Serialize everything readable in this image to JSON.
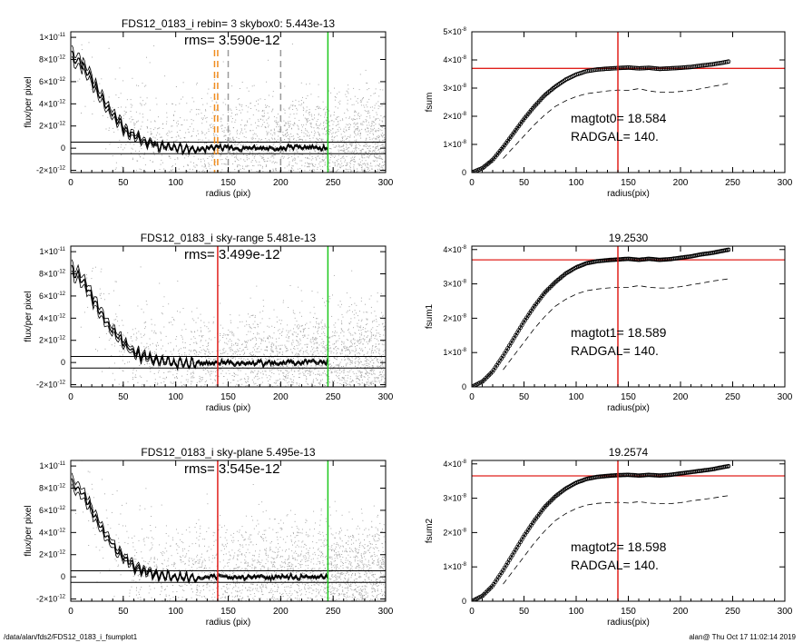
{
  "footer": {
    "path": "/data/alan/fds2/FDS12_0183_i_fsumplot1",
    "user_time": "alan@  Thu Oct 17 11:02:14 2019"
  },
  "colors": {
    "scatter": "#a9a9a9",
    "profile": "#000000",
    "radgal_line": "#e0201c",
    "sky_line": "#1ec81e",
    "skybox_line": "#f08c1e",
    "axes": "#000000"
  },
  "chart_data": [
    {
      "type": "scatter",
      "title": "FDS12_0183_i rebin= 3    skybox0:  5.443e-13",
      "annotation": "rms= 3.590e-12",
      "xlabel": "radius (pix)",
      "ylabel": "flux/per pixel",
      "xlim": [
        0,
        300
      ],
      "ylim": [
        -2.2e-12,
        1.05e-11
      ],
      "xticks": [
        0,
        50,
        100,
        150,
        200,
        250,
        300
      ],
      "xtick_labels": [
        "0",
        "50",
        "100",
        "150",
        "200",
        "250",
        "300"
      ],
      "yticks": [
        -2e-12,
        0,
        2e-12,
        4e-12,
        6e-12,
        8e-12,
        1e-11
      ],
      "ytick_labels": [
        [
          "-2×10",
          "-12"
        ],
        [
          "0",
          ""
        ],
        [
          "2×10",
          "-12"
        ],
        [
          "4×10",
          "-12"
        ],
        [
          "6×10",
          "-12"
        ],
        [
          "8×10",
          "-12"
        ],
        [
          "1×10",
          "-11"
        ]
      ],
      "hlines": [
        5.443e-13,
        -5e-13
      ],
      "vline_sky": 245,
      "vline_radgal": null,
      "dashed_vlines": [
        {
          "x": 140,
          "color": "orange"
        },
        {
          "x": 137,
          "color": "orange"
        },
        {
          "x": 150,
          "color": "gray"
        },
        {
          "x": 200,
          "color": "gray"
        }
      ],
      "profile": {
        "x": [
          1,
          5,
          10,
          15,
          20,
          25,
          30,
          35,
          40,
          45,
          50,
          55,
          60,
          65,
          70,
          75,
          80,
          90,
          100,
          120,
          140,
          160,
          180,
          200,
          220,
          245
        ],
        "y": [
          8.5e-12,
          8e-12,
          7.7e-12,
          7e-12,
          6.2e-12,
          5.2e-12,
          4.4e-12,
          3.6e-12,
          3e-12,
          2.4e-12,
          1.9e-12,
          1.5e-12,
          1.1e-12,
          8e-13,
          6e-13,
          4.5e-13,
          3e-13,
          1.5e-13,
          5e-14,
          -5e-14,
          1e-13,
          -5e-14,
          5e-14,
          0,
          5e-14,
          0
        ]
      },
      "scatter_seed": 11,
      "scatter_noise": 3.59e-12
    },
    {
      "type": "line",
      "title": "",
      "xlabel": "radius(pix)",
      "ylabel": "fsum",
      "xlim": [
        0,
        300
      ],
      "ylim": [
        0,
        5e-08
      ],
      "xticks": [
        0,
        50,
        100,
        150,
        200,
        250,
        300
      ],
      "xtick_labels": [
        "0",
        "50",
        "100",
        "150",
        "200",
        "250",
        "300"
      ],
      "yticks": [
        0,
        1e-08,
        2e-08,
        3e-08,
        4e-08,
        5e-08
      ],
      "ytick_labels": [
        [
          "0",
          ""
        ],
        [
          "1×10",
          "-8"
        ],
        [
          "2×10",
          "-8"
        ],
        [
          "3×10",
          "-8"
        ],
        [
          "4×10",
          "-8"
        ],
        [
          "5×10",
          "-8"
        ]
      ],
      "hline": 3.7e-08,
      "vline": 140,
      "annotations": [
        "magtot0=  18.584",
        "RADGAL=    140."
      ],
      "curve": {
        "x": [
          0,
          10,
          20,
          30,
          40,
          50,
          60,
          70,
          80,
          90,
          100,
          110,
          120,
          130,
          140,
          150,
          160,
          170,
          180,
          190,
          200,
          210,
          220,
          230,
          240,
          247
        ],
        "y": [
          0,
          1.5e-09,
          4.5e-09,
          9e-09,
          1.4e-08,
          1.9e-08,
          2.35e-08,
          2.75e-08,
          3.05e-08,
          3.3e-08,
          3.48e-08,
          3.6e-08,
          3.66e-08,
          3.69e-08,
          3.71e-08,
          3.73e-08,
          3.7e-08,
          3.72e-08,
          3.68e-08,
          3.7e-08,
          3.72e-08,
          3.75e-08,
          3.8e-08,
          3.84e-08,
          3.9e-08,
          3.95e-08
        ]
      },
      "dashed": {
        "x": [
          30,
          40,
          50,
          60,
          70,
          80,
          90,
          100,
          110,
          120,
          130,
          140,
          150,
          160,
          170,
          180,
          190,
          200,
          210,
          220,
          230,
          240,
          247
        ],
        "y": [
          5e-09,
          9e-09,
          1.3e-08,
          1.7e-08,
          2.05e-08,
          2.35e-08,
          2.55e-08,
          2.7e-08,
          2.8e-08,
          2.85e-08,
          2.9e-08,
          2.93e-08,
          2.92e-08,
          2.98e-08,
          2.9e-08,
          2.85e-08,
          2.85e-08,
          2.88e-08,
          2.92e-08,
          2.98e-08,
          3.05e-08,
          3.12e-08,
          3.18e-08
        ]
      },
      "error_band": 6e-10
    },
    {
      "type": "scatter",
      "title": "FDS12_0183_i sky-range  5.481e-13",
      "annotation": "rms= 3.499e-12",
      "xlabel": "radius (pix)",
      "ylabel": "flux/per pixel",
      "xlim": [
        0,
        300
      ],
      "ylim": [
        -2.2e-12,
        1.05e-11
      ],
      "xticks": [
        0,
        50,
        100,
        150,
        200,
        250,
        300
      ],
      "xtick_labels": [
        "0",
        "50",
        "100",
        "150",
        "200",
        "250",
        "300"
      ],
      "yticks": [
        -2e-12,
        0,
        2e-12,
        4e-12,
        6e-12,
        8e-12,
        1e-11
      ],
      "ytick_labels": [
        [
          "-2×10",
          "-12"
        ],
        [
          "0",
          ""
        ],
        [
          "2×10",
          "-12"
        ],
        [
          "4×10",
          "-12"
        ],
        [
          "6×10",
          "-12"
        ],
        [
          "8×10",
          "-12"
        ],
        [
          "1×10",
          "-11"
        ]
      ],
      "hlines": [
        5.481e-13,
        -5e-13
      ],
      "vline_sky": 245,
      "vline_radgal": 140,
      "dashed_vlines": [],
      "profile": {
        "x": [
          1,
          5,
          10,
          15,
          20,
          25,
          30,
          35,
          40,
          45,
          50,
          55,
          60,
          65,
          70,
          75,
          80,
          90,
          100,
          120,
          140,
          160,
          180,
          200,
          220,
          245
        ],
        "y": [
          8.4e-12,
          8e-12,
          7.6e-12,
          6.9e-12,
          6.1e-12,
          5.1e-12,
          4.3e-12,
          3.5e-12,
          2.9e-12,
          2.3e-12,
          1.8e-12,
          1.4e-12,
          1e-12,
          7.5e-13,
          5.5e-13,
          4e-13,
          2.5e-13,
          1e-13,
          0,
          -1e-13,
          5e-14,
          -1e-13,
          0,
          -5e-14,
          0,
          -5e-14
        ]
      },
      "scatter_seed": 23,
      "scatter_noise": 3.499e-12
    },
    {
      "type": "line",
      "title": "19.2530",
      "xlabel": "radius(pix)",
      "ylabel": "fsum1",
      "xlim": [
        0,
        300
      ],
      "ylim": [
        0,
        4.1e-08
      ],
      "xticks": [
        0,
        50,
        100,
        150,
        200,
        250,
        300
      ],
      "xtick_labels": [
        "0",
        "50",
        "100",
        "150",
        "200",
        "250",
        "300"
      ],
      "yticks": [
        0,
        1e-08,
        2e-08,
        3e-08,
        4e-08
      ],
      "ytick_labels": [
        [
          "0",
          ""
        ],
        [
          "1×10",
          "-8"
        ],
        [
          "2×10",
          "-8"
        ],
        [
          "3×10",
          "-8"
        ],
        [
          "4×10",
          "-8"
        ]
      ],
      "hline": 3.7e-08,
      "vline": 140,
      "annotations": [
        "magtot1=  18.589",
        "RADGAL=    140."
      ],
      "curve": {
        "x": [
          0,
          10,
          20,
          30,
          40,
          50,
          60,
          70,
          80,
          90,
          100,
          110,
          120,
          130,
          140,
          150,
          160,
          170,
          180,
          190,
          200,
          210,
          220,
          230,
          240,
          247
        ],
        "y": [
          0,
          1.5e-09,
          4.5e-09,
          9e-09,
          1.4e-08,
          1.9e-08,
          2.35e-08,
          2.75e-08,
          3.05e-08,
          3.3e-08,
          3.48e-08,
          3.6e-08,
          3.66e-08,
          3.69e-08,
          3.71e-08,
          3.73e-08,
          3.7e-08,
          3.73e-08,
          3.7e-08,
          3.72e-08,
          3.76e-08,
          3.8e-08,
          3.86e-08,
          3.9e-08,
          3.96e-08,
          4e-08
        ]
      },
      "dashed": {
        "x": [
          30,
          40,
          50,
          60,
          70,
          80,
          90,
          100,
          110,
          120,
          130,
          140,
          150,
          160,
          170,
          180,
          190,
          200,
          210,
          220,
          230,
          240,
          247
        ],
        "y": [
          5e-09,
          9e-09,
          1.3e-08,
          1.7e-08,
          2.05e-08,
          2.35e-08,
          2.55e-08,
          2.7e-08,
          2.8e-08,
          2.85e-08,
          2.88e-08,
          2.9e-08,
          2.9e-08,
          2.95e-08,
          2.9e-08,
          2.88e-08,
          2.88e-08,
          2.92e-08,
          2.97e-08,
          3.02e-08,
          3.08e-08,
          3.12e-08,
          3.15e-08
        ]
      },
      "error_band": 3e-10
    },
    {
      "type": "scatter",
      "title": "FDS12_0183_i sky-plane  5.495e-13",
      "annotation": "rms= 3.545e-12",
      "xlabel": "radius (pix)",
      "ylabel": "flux/per pixel",
      "xlim": [
        0,
        300
      ],
      "ylim": [
        -2.2e-12,
        1.05e-11
      ],
      "xticks": [
        0,
        50,
        100,
        150,
        200,
        250,
        300
      ],
      "xtick_labels": [
        "0",
        "50",
        "100",
        "150",
        "200",
        "250",
        "300"
      ],
      "yticks": [
        -2e-12,
        0,
        2e-12,
        4e-12,
        6e-12,
        8e-12,
        1e-11
      ],
      "ytick_labels": [
        [
          "-2×10",
          "-12"
        ],
        [
          "0",
          ""
        ],
        [
          "2×10",
          "-12"
        ],
        [
          "4×10",
          "-12"
        ],
        [
          "6×10",
          "-12"
        ],
        [
          "8×10",
          "-12"
        ],
        [
          "1×10",
          "-11"
        ]
      ],
      "hlines": [
        5.495e-13,
        -5e-13
      ],
      "vline_sky": 245,
      "vline_radgal": 140,
      "dashed_vlines": [],
      "profile": {
        "x": [
          1,
          5,
          10,
          15,
          20,
          25,
          30,
          35,
          40,
          45,
          50,
          55,
          60,
          65,
          70,
          75,
          80,
          90,
          100,
          120,
          140,
          160,
          180,
          200,
          220,
          245
        ],
        "y": [
          8.4e-12,
          8e-12,
          7.6e-12,
          6.9e-12,
          6.1e-12,
          5.1e-12,
          4.3e-12,
          3.5e-12,
          2.9e-12,
          2.3e-12,
          1.8e-12,
          1.4e-12,
          1e-12,
          7.5e-13,
          5.5e-13,
          4e-13,
          2.5e-13,
          1e-13,
          0,
          -1e-13,
          5e-14,
          -1e-13,
          0,
          -5e-14,
          0,
          -5e-14
        ]
      },
      "scatter_seed": 37,
      "scatter_noise": 3.545e-12
    },
    {
      "type": "line",
      "title": "19.2574",
      "xlabel": "radius(pix)",
      "ylabel": "fsum2",
      "xlim": [
        0,
        300
      ],
      "ylim": [
        0,
        4.1e-08
      ],
      "xticks": [
        0,
        50,
        100,
        150,
        200,
        250,
        300
      ],
      "xtick_labels": [
        "0",
        "50",
        "100",
        "150",
        "200",
        "250",
        "300"
      ],
      "yticks": [
        0,
        1e-08,
        2e-08,
        3e-08,
        4e-08
      ],
      "ytick_labels": [
        [
          "0",
          ""
        ],
        [
          "1×10",
          "-8"
        ],
        [
          "2×10",
          "-8"
        ],
        [
          "3×10",
          "-8"
        ],
        [
          "4×10",
          "-8"
        ]
      ],
      "hline": 3.65e-08,
      "vline": 140,
      "annotations": [
        "magtot2=  18.598",
        "RADGAL=    140."
      ],
      "curve": {
        "x": [
          0,
          10,
          20,
          30,
          40,
          50,
          60,
          70,
          80,
          90,
          100,
          110,
          120,
          130,
          140,
          150,
          160,
          170,
          180,
          190,
          200,
          210,
          220,
          230,
          240,
          247
        ],
        "y": [
          0,
          1.5e-09,
          4.5e-09,
          9e-09,
          1.4e-08,
          1.9e-08,
          2.35e-08,
          2.75e-08,
          3.05e-08,
          3.28e-08,
          3.45e-08,
          3.56e-08,
          3.62e-08,
          3.65e-08,
          3.67e-08,
          3.68e-08,
          3.66e-08,
          3.68e-08,
          3.66e-08,
          3.68e-08,
          3.72e-08,
          3.76e-08,
          3.8e-08,
          3.84e-08,
          3.9e-08,
          3.94e-08
        ]
      },
      "dashed": {
        "x": [
          30,
          40,
          50,
          60,
          70,
          80,
          90,
          100,
          110,
          120,
          130,
          140,
          150,
          160,
          170,
          180,
          190,
          200,
          210,
          220,
          230,
          240,
          247
        ],
        "y": [
          5e-09,
          9e-09,
          1.3e-08,
          1.7e-08,
          2.05e-08,
          2.35e-08,
          2.55e-08,
          2.7e-08,
          2.8e-08,
          2.85e-08,
          2.87e-08,
          2.88e-08,
          2.86e-08,
          2.9e-08,
          2.86e-08,
          2.84e-08,
          2.84e-08,
          2.87e-08,
          2.92e-08,
          2.96e-08,
          3e-08,
          3.05e-08,
          3.08e-08
        ]
      },
      "error_band": 3e-10
    }
  ]
}
